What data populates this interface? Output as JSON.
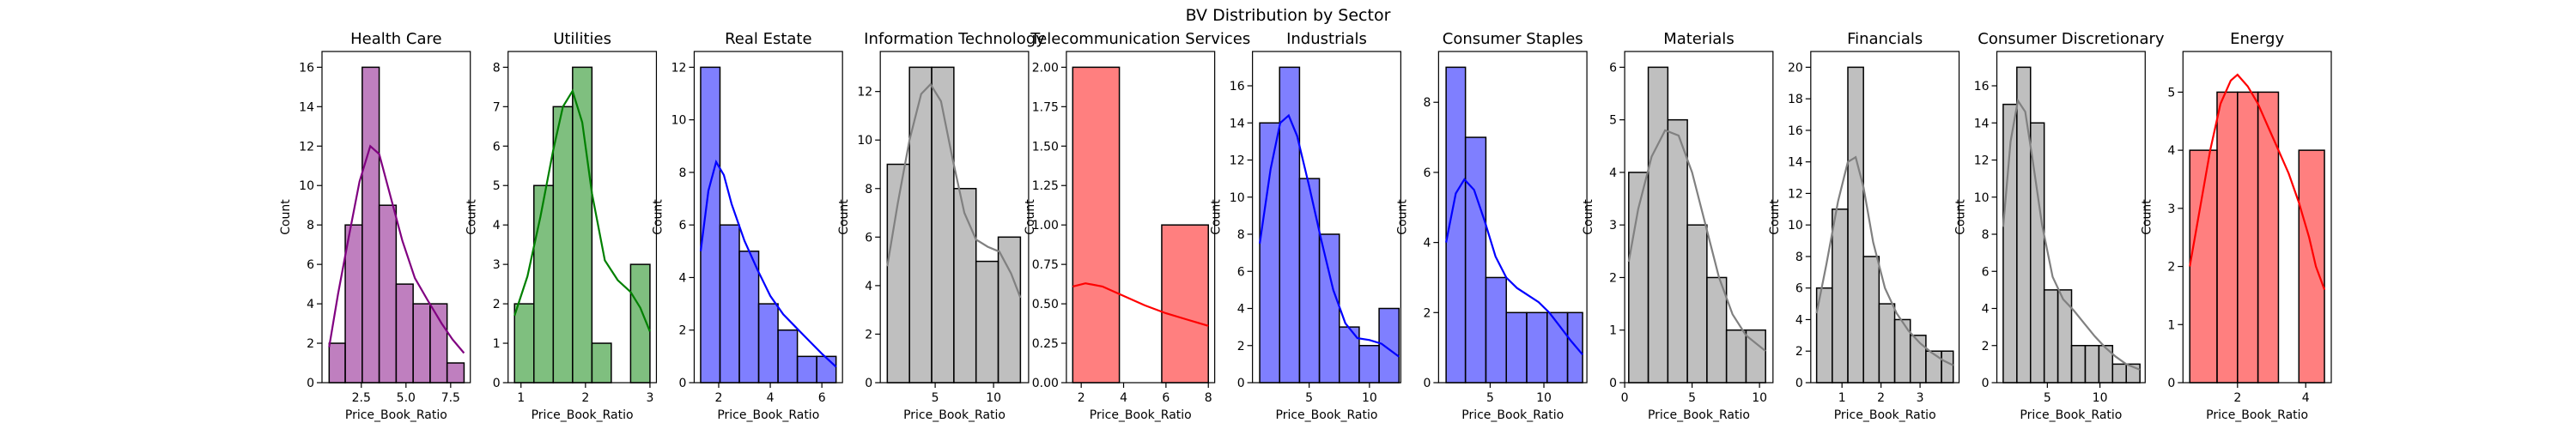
{
  "figure": {
    "suptitle": "BV Distribution by Sector"
  },
  "chart_data": [
    {
      "type": "bar",
      "title": "Health Care",
      "xlabel": "Price_Book_Ratio",
      "ylabel": "Count",
      "color": "#800080",
      "xlim": [
        0.3,
        8.6
      ],
      "ylim": [
        0,
        16.8
      ],
      "xticks": [
        2.5,
        5.0,
        7.5
      ],
      "xtick_labels": [
        "2.5",
        "5.0",
        "7.5"
      ],
      "yticks": [
        0,
        2,
        4,
        6,
        8,
        10,
        12,
        14,
        16
      ],
      "bins": [
        [
          0.7,
          1.6,
          2
        ],
        [
          1.6,
          2.55,
          8
        ],
        [
          2.55,
          3.5,
          16
        ],
        [
          3.5,
          4.45,
          9
        ],
        [
          4.45,
          5.4,
          5
        ],
        [
          5.4,
          6.35,
          4
        ],
        [
          6.35,
          7.3,
          4
        ],
        [
          7.3,
          8.25,
          1
        ]
      ],
      "kde": [
        [
          0.7,
          1.8
        ],
        [
          1.2,
          4.5
        ],
        [
          1.8,
          7.4
        ],
        [
          2.4,
          10.2
        ],
        [
          3.0,
          12.0
        ],
        [
          3.5,
          11.6
        ],
        [
          4.0,
          9.9
        ],
        [
          4.8,
          7.2
        ],
        [
          5.5,
          5.3
        ],
        [
          6.2,
          4.2
        ],
        [
          7.0,
          3.0
        ],
        [
          7.6,
          2.2
        ],
        [
          8.25,
          1.5
        ]
      ]
    },
    {
      "type": "bar",
      "title": "Utilities",
      "xlabel": "Price_Book_Ratio",
      "ylabel": "Count",
      "color": "#008000",
      "xlim": [
        0.8,
        3.1
      ],
      "ylim": [
        0,
        8.4
      ],
      "xticks": [
        1,
        2,
        3
      ],
      "xtick_labels": [
        "1",
        "2",
        "3"
      ],
      "yticks": [
        0,
        1,
        2,
        3,
        4,
        5,
        6,
        7,
        8
      ],
      "bins": [
        [
          0.9,
          1.2,
          2
        ],
        [
          1.2,
          1.5,
          5
        ],
        [
          1.5,
          1.8,
          7
        ],
        [
          1.8,
          2.1,
          8
        ],
        [
          2.1,
          2.4,
          1
        ],
        [
          2.4,
          2.7,
          0
        ],
        [
          2.7,
          3.0,
          3
        ]
      ],
      "kde": [
        [
          0.9,
          1.7
        ],
        [
          1.1,
          2.7
        ],
        [
          1.3,
          4.2
        ],
        [
          1.5,
          5.9
        ],
        [
          1.65,
          7.0
        ],
        [
          1.8,
          7.4
        ],
        [
          1.95,
          6.6
        ],
        [
          2.1,
          4.8
        ],
        [
          2.3,
          3.1
        ],
        [
          2.5,
          2.6
        ],
        [
          2.7,
          2.3
        ],
        [
          2.85,
          1.9
        ],
        [
          3.0,
          1.3
        ]
      ]
    },
    {
      "type": "bar",
      "title": "Real Estate",
      "xlabel": "Price_Book_Ratio",
      "ylabel": "Count",
      "color": "#0000ff",
      "xlim": [
        1.05,
        6.8
      ],
      "ylim": [
        0,
        12.6
      ],
      "xticks": [
        2,
        4,
        6
      ],
      "xtick_labels": [
        "2",
        "4",
        "6"
      ],
      "yticks": [
        0,
        2,
        4,
        6,
        8,
        10,
        12
      ],
      "bins": [
        [
          1.3,
          2.05,
          12
        ],
        [
          2.05,
          2.8,
          6
        ],
        [
          2.8,
          3.55,
          5
        ],
        [
          3.55,
          4.3,
          3
        ],
        [
          4.3,
          5.05,
          2
        ],
        [
          5.05,
          5.8,
          1
        ],
        [
          5.8,
          6.55,
          1
        ]
      ],
      "kde": [
        [
          1.3,
          5.0
        ],
        [
          1.6,
          7.3
        ],
        [
          1.9,
          8.4
        ],
        [
          2.2,
          7.9
        ],
        [
          2.5,
          6.8
        ],
        [
          3.0,
          5.4
        ],
        [
          3.5,
          4.3
        ],
        [
          4.0,
          3.3
        ],
        [
          4.5,
          2.6
        ],
        [
          5.0,
          2.1
        ],
        [
          5.5,
          1.6
        ],
        [
          6.0,
          1.1
        ],
        [
          6.55,
          0.6
        ]
      ]
    },
    {
      "type": "bar",
      "title": "Information Technology",
      "xlabel": "Price_Book_Ratio",
      "ylabel": "Count",
      "color": "#808080",
      "xlim": [
        0.3,
        13.0
      ],
      "ylim": [
        0,
        13.65
      ],
      "xticks": [
        5,
        10
      ],
      "xtick_labels": [
        "5",
        "10"
      ],
      "yticks": [
        0,
        2,
        4,
        6,
        8,
        10,
        12
      ],
      "bins": [
        [
          0.9,
          2.8,
          9
        ],
        [
          2.8,
          4.7,
          13
        ],
        [
          4.7,
          6.6,
          13
        ],
        [
          6.6,
          8.5,
          8
        ],
        [
          8.5,
          10.4,
          5
        ],
        [
          10.4,
          12.3,
          6
        ]
      ],
      "kde": [
        [
          0.9,
          4.8
        ],
        [
          1.8,
          7.4
        ],
        [
          2.8,
          10.0
        ],
        [
          3.8,
          11.9
        ],
        [
          4.6,
          12.3
        ],
        [
          5.5,
          11.6
        ],
        [
          6.5,
          9.2
        ],
        [
          7.5,
          7.0
        ],
        [
          8.5,
          5.9
        ],
        [
          9.5,
          5.6
        ],
        [
          10.5,
          5.4
        ],
        [
          11.5,
          4.5
        ],
        [
          12.3,
          3.5
        ]
      ]
    },
    {
      "type": "bar",
      "title": "Telecommunication Services",
      "xlabel": "Price_Book_Ratio",
      "ylabel": "Count",
      "color": "#ff0000",
      "xlim": [
        1.3,
        8.3
      ],
      "ylim": [
        0,
        2.1
      ],
      "xticks": [
        2,
        4,
        6,
        8
      ],
      "xtick_labels": [
        "2",
        "4",
        "6",
        "8"
      ],
      "yticks": [
        0,
        0.25,
        0.5,
        0.75,
        1.0,
        1.25,
        1.5,
        1.75,
        2.0
      ],
      "ytick_labels": [
        "0.00",
        "0.25",
        "0.50",
        "0.75",
        "1.00",
        "1.25",
        "1.50",
        "1.75",
        "2.00"
      ],
      "bins": [
        [
          1.6,
          3.8,
          2
        ],
        [
          3.8,
          5.8,
          0
        ],
        [
          5.8,
          8.0,
          1
        ]
      ],
      "kde": [
        [
          1.6,
          0.61
        ],
        [
          2.2,
          0.63
        ],
        [
          3.0,
          0.61
        ],
        [
          4.0,
          0.55
        ],
        [
          5.0,
          0.49
        ],
        [
          6.0,
          0.44
        ],
        [
          7.0,
          0.4
        ],
        [
          8.0,
          0.36
        ]
      ]
    },
    {
      "type": "bar",
      "title": "Industrials",
      "xlabel": "Price_Book_Ratio",
      "ylabel": "Count",
      "color": "#0000ff",
      "xlim": [
        0.3,
        12.6
      ],
      "ylim": [
        0,
        17.85
      ],
      "xticks": [
        5,
        10
      ],
      "xtick_labels": [
        "5",
        "10"
      ],
      "yticks": [
        0,
        2,
        4,
        6,
        8,
        10,
        12,
        14,
        16
      ],
      "bins": [
        [
          0.9,
          2.55,
          14
        ],
        [
          2.55,
          4.2,
          17
        ],
        [
          4.2,
          5.85,
          11
        ],
        [
          5.85,
          7.5,
          8
        ],
        [
          7.5,
          9.15,
          3
        ],
        [
          9.15,
          10.8,
          2
        ],
        [
          10.8,
          12.45,
          4
        ]
      ],
      "kde": [
        [
          0.9,
          7.5
        ],
        [
          1.8,
          11.5
        ],
        [
          2.6,
          14.0
        ],
        [
          3.3,
          14.4
        ],
        [
          4.0,
          13.3
        ],
        [
          5.0,
          10.6
        ],
        [
          6.0,
          7.7
        ],
        [
          7.0,
          5.0
        ],
        [
          8.0,
          3.2
        ],
        [
          9.0,
          2.4
        ],
        [
          10.0,
          2.3
        ],
        [
          11.0,
          2.1
        ],
        [
          12.45,
          1.4
        ]
      ]
    },
    {
      "type": "bar",
      "title": "Consumer Staples",
      "xlabel": "Price_Book_Ratio",
      "ylabel": "Count",
      "color": "#0000ff",
      "xlim": [
        0.2,
        14.0
      ],
      "ylim": [
        0,
        9.45
      ],
      "xticks": [
        5,
        10
      ],
      "xtick_labels": [
        "5",
        "10"
      ],
      "yticks": [
        0,
        2,
        4,
        6,
        8
      ],
      "bins": [
        [
          0.9,
          2.7,
          9
        ],
        [
          2.7,
          4.6,
          7
        ],
        [
          4.6,
          6.5,
          3
        ],
        [
          6.5,
          8.4,
          2
        ],
        [
          8.4,
          10.3,
          2
        ],
        [
          10.3,
          12.2,
          2
        ],
        [
          12.2,
          13.6,
          2
        ]
      ],
      "kde": [
        [
          0.9,
          4.0
        ],
        [
          1.8,
          5.4
        ],
        [
          2.6,
          5.8
        ],
        [
          3.5,
          5.5
        ],
        [
          4.5,
          4.6
        ],
        [
          5.5,
          3.6
        ],
        [
          6.5,
          3.0
        ],
        [
          7.5,
          2.7
        ],
        [
          8.5,
          2.5
        ],
        [
          9.5,
          2.3
        ],
        [
          10.5,
          2.0
        ],
        [
          11.5,
          1.6
        ],
        [
          12.5,
          1.2
        ],
        [
          13.6,
          0.8
        ]
      ]
    },
    {
      "type": "bar",
      "title": "Materials",
      "xlabel": "Price_Book_Ratio",
      "ylabel": "Count",
      "color": "#808080",
      "xlim": [
        0.0,
        11.0
      ],
      "ylim": [
        0,
        6.3
      ],
      "xticks": [
        0,
        5,
        10
      ],
      "xtick_labels": [
        "0",
        "5",
        "10"
      ],
      "yticks": [
        0,
        1,
        2,
        3,
        4,
        5,
        6
      ],
      "bins": [
        [
          0.3,
          1.75,
          4
        ],
        [
          1.75,
          3.2,
          6
        ],
        [
          3.2,
          4.65,
          5
        ],
        [
          4.65,
          6.1,
          3
        ],
        [
          6.1,
          7.55,
          2
        ],
        [
          7.55,
          9.0,
          1
        ],
        [
          9.0,
          10.45,
          1
        ]
      ],
      "kde": [
        [
          0.3,
          2.3
        ],
        [
          1.0,
          3.3
        ],
        [
          2.0,
          4.3
        ],
        [
          3.0,
          4.8
        ],
        [
          4.0,
          4.7
        ],
        [
          5.0,
          4.0
        ],
        [
          6.0,
          3.0
        ],
        [
          7.0,
          2.0
        ],
        [
          8.0,
          1.3
        ],
        [
          9.0,
          0.9
        ],
        [
          10.45,
          0.6
        ]
      ]
    },
    {
      "type": "bar",
      "title": "Financials",
      "xlabel": "Price_Book_Ratio",
      "ylabel": "Count",
      "color": "#808080",
      "xlim": [
        0.2,
        4.0
      ],
      "ylim": [
        0,
        21.0
      ],
      "xticks": [
        1,
        2,
        3
      ],
      "xtick_labels": [
        "1",
        "2",
        "3"
      ],
      "yticks": [
        0,
        2,
        4,
        6,
        8,
        10,
        12,
        14,
        16,
        18,
        20
      ],
      "bins": [
        [
          0.35,
          0.75,
          6
        ],
        [
          0.75,
          1.15,
          11
        ],
        [
          1.15,
          1.55,
          20
        ],
        [
          1.55,
          1.95,
          8
        ],
        [
          1.95,
          2.35,
          5
        ],
        [
          2.35,
          2.75,
          4
        ],
        [
          2.75,
          3.15,
          3
        ],
        [
          3.15,
          3.55,
          2
        ],
        [
          3.55,
          3.85,
          2
        ]
      ],
      "kde": [
        [
          0.35,
          4.4
        ],
        [
          0.6,
          7.5
        ],
        [
          0.9,
          11.5
        ],
        [
          1.15,
          14.0
        ],
        [
          1.35,
          14.3
        ],
        [
          1.55,
          12.4
        ],
        [
          1.8,
          8.9
        ],
        [
          2.1,
          6.0
        ],
        [
          2.4,
          4.4
        ],
        [
          2.7,
          3.3
        ],
        [
          3.0,
          2.5
        ],
        [
          3.3,
          1.9
        ],
        [
          3.6,
          1.4
        ],
        [
          3.85,
          1.1
        ]
      ]
    },
    {
      "type": "bar",
      "title": "Consumer Discretionary",
      "xlabel": "Price_Book_Ratio",
      "ylabel": "Count",
      "color": "#808080",
      "xlim": [
        0.2,
        14.3
      ],
      "ylim": [
        0,
        17.85
      ],
      "xticks": [
        5,
        10
      ],
      "xtick_labels": [
        "5",
        "10"
      ],
      "yticks": [
        0,
        2,
        4,
        6,
        8,
        10,
        12,
        14,
        16
      ],
      "bins": [
        [
          0.8,
          2.1,
          15
        ],
        [
          2.1,
          3.4,
          17
        ],
        [
          3.4,
          4.7,
          14
        ],
        [
          4.7,
          6.0,
          5
        ],
        [
          6.0,
          7.3,
          5
        ],
        [
          7.3,
          8.6,
          2
        ],
        [
          8.6,
          9.9,
          2
        ],
        [
          9.9,
          11.2,
          2
        ],
        [
          11.2,
          12.5,
          1
        ],
        [
          12.5,
          13.8,
          1
        ]
      ],
      "kde": [
        [
          0.8,
          8.4
        ],
        [
          1.5,
          13.0
        ],
        [
          2.2,
          15.2
        ],
        [
          2.9,
          14.6
        ],
        [
          3.6,
          12.0
        ],
        [
          4.5,
          8.5
        ],
        [
          5.5,
          5.7
        ],
        [
          6.5,
          4.5
        ],
        [
          7.5,
          3.9
        ],
        [
          8.5,
          3.2
        ],
        [
          9.5,
          2.5
        ],
        [
          10.5,
          1.9
        ],
        [
          11.5,
          1.4
        ],
        [
          12.5,
          1.0
        ],
        [
          13.8,
          0.7
        ]
      ]
    },
    {
      "type": "bar",
      "title": "Energy",
      "xlabel": "Price_Book_Ratio",
      "ylabel": "Count",
      "color": "#ff0000",
      "xlim": [
        0.4,
        4.75
      ],
      "ylim": [
        0,
        5.7
      ],
      "xticks": [
        2,
        4
      ],
      "xtick_labels": [
        "2",
        "4"
      ],
      "yticks": [
        0,
        1,
        2,
        3,
        4,
        5
      ],
      "bins": [
        [
          0.6,
          1.4,
          4
        ],
        [
          1.4,
          2.0,
          5
        ],
        [
          2.0,
          2.6,
          5
        ],
        [
          2.6,
          3.2,
          5
        ],
        [
          3.2,
          3.8,
          0
        ],
        [
          3.8,
          4.55,
          4
        ]
      ],
      "kde": [
        [
          0.6,
          2.0
        ],
        [
          0.9,
          3.0
        ],
        [
          1.2,
          4.0
        ],
        [
          1.5,
          4.8
        ],
        [
          1.8,
          5.2
        ],
        [
          2.0,
          5.3
        ],
        [
          2.3,
          5.1
        ],
        [
          2.6,
          4.8
        ],
        [
          2.9,
          4.4
        ],
        [
          3.2,
          4.0
        ],
        [
          3.5,
          3.6
        ],
        [
          3.8,
          3.1
        ],
        [
          4.1,
          2.5
        ],
        [
          4.3,
          2.0
        ],
        [
          4.55,
          1.6
        ]
      ]
    }
  ]
}
